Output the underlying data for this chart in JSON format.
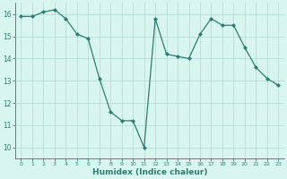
{
  "x": [
    0,
    1,
    2,
    3,
    4,
    5,
    6,
    7,
    8,
    9,
    10,
    11,
    12,
    13,
    14,
    15,
    16,
    17,
    18,
    19,
    20,
    21,
    22,
    23
  ],
  "y": [
    15.9,
    15.9,
    16.1,
    16.2,
    15.8,
    15.1,
    14.9,
    13.1,
    11.6,
    11.2,
    11.2,
    10.0,
    15.8,
    14.2,
    14.1,
    14.0,
    15.1,
    15.8,
    15.5,
    15.5,
    14.5,
    13.6,
    13.1,
    12.8
  ],
  "line_color": "#2d7d6e",
  "marker": "D",
  "marker_size": 2,
  "bg_color": "#d9f5f0",
  "grid_color": "#b8ddd8",
  "xlabel": "Humidex (Indice chaleur)",
  "ylim": [
    9.5,
    16.5
  ],
  "xlim": [
    -0.5,
    23.5
  ],
  "yticks": [
    10,
    11,
    12,
    13,
    14,
    15,
    16
  ],
  "xticks": [
    0,
    1,
    2,
    3,
    4,
    5,
    6,
    7,
    8,
    9,
    10,
    11,
    12,
    13,
    14,
    15,
    16,
    17,
    18,
    19,
    20,
    21,
    22,
    23
  ],
  "label_color": "#2d7d6e",
  "tick_color": "#2d7d6e",
  "spine_color": "#2d7d6e",
  "x_tick_fontsize": 4.5,
  "y_tick_fontsize": 5.5,
  "xlabel_fontsize": 6.5
}
